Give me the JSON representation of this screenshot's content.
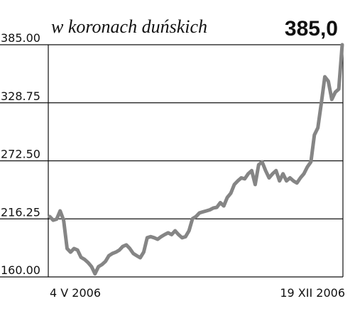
{
  "chart_data": {
    "type": "line",
    "title": "w koronach duńskich",
    "headline_value": "385,0",
    "color": "#858585",
    "grid": true,
    "categories": [
      "4 V 2006",
      null,
      null,
      null,
      null,
      null,
      null,
      null,
      null,
      null,
      null,
      null,
      null,
      null,
      null,
      null,
      null,
      null,
      null,
      null,
      null,
      null,
      null,
      null,
      null,
      null,
      null,
      null,
      null,
      null,
      null,
      null,
      null,
      null,
      null,
      null,
      null,
      null,
      null,
      null,
      null,
      null,
      null,
      null,
      null,
      null,
      null,
      null,
      null,
      null,
      null,
      null,
      null,
      null,
      null,
      null,
      null,
      null,
      null,
      null,
      null,
      null,
      null,
      null,
      null,
      null,
      null,
      null,
      null,
      null,
      null,
      null,
      null,
      null,
      null,
      null,
      null,
      null,
      null,
      null,
      null,
      null,
      null,
      null,
      "19 XII 2006"
    ],
    "values": [
      218.5,
      215,
      216,
      224,
      215,
      187.5,
      184,
      187.5,
      186,
      179,
      177,
      174,
      170,
      163,
      170,
      172,
      175,
      180.6,
      182.7,
      184,
      186,
      189.6,
      191,
      187.5,
      182.7,
      180.6,
      178.6,
      184,
      198,
      199,
      198,
      196.5,
      199,
      201,
      202.7,
      201,
      204.7,
      201,
      198,
      199,
      204.7,
      216.4,
      218.5,
      222,
      223,
      224,
      225,
      226.8,
      227.4,
      232,
      228.8,
      237,
      241,
      249.5,
      253,
      256,
      255,
      260,
      263,
      249.5,
      268.7,
      271.5,
      263,
      256,
      260,
      263,
      253,
      260,
      253,
      256,
      253,
      251,
      256,
      260,
      266.7,
      271.5,
      297.6,
      304.5,
      328.6,
      354,
      349.6,
      332,
      339,
      342,
      385
    ],
    "ylim": [
      160,
      385
    ],
    "yticks": [
      {
        "value": 160,
        "label": "160.00"
      },
      {
        "value": 216.25,
        "label": "216.25"
      },
      {
        "value": 272.5,
        "label": "272.50"
      },
      {
        "value": 328.75,
        "label": "328.75"
      },
      {
        "value": 385,
        "label": "385.00"
      }
    ]
  }
}
